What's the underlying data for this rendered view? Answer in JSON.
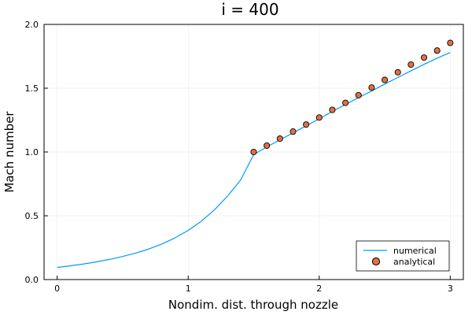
{
  "chart_data": {
    "type": "line",
    "title": "i = 400",
    "xlabel": "Nondim. dist. through nozzle",
    "ylabel": "Mach number",
    "xlim": [
      -0.1,
      3.1
    ],
    "ylim": [
      0.0,
      2.0
    ],
    "xticks": [
      0,
      1,
      2,
      3
    ],
    "xtick_labels": [
      "0",
      "1",
      "2",
      "3"
    ],
    "yticks": [
      0.0,
      0.5,
      1.0,
      1.5,
      2.0
    ],
    "ytick_labels": [
      "0.0",
      "0.5",
      "1.0",
      "1.5",
      "2.0"
    ],
    "grid": true,
    "legend_position": "bottom-right",
    "series": [
      {
        "name": "numerical",
        "kind": "line",
        "color": "#009AFA",
        "x": [
          0.0,
          0.1,
          0.2,
          0.3,
          0.4,
          0.5,
          0.6,
          0.7,
          0.8,
          0.9,
          1.0,
          1.1,
          1.2,
          1.3,
          1.4,
          1.5,
          1.6,
          1.7,
          1.8,
          1.9,
          2.0,
          2.1,
          2.2,
          2.3,
          2.4,
          2.5,
          2.6,
          2.7,
          2.8,
          2.9,
          3.0
        ],
        "y": [
          0.095,
          0.108,
          0.122,
          0.139,
          0.158,
          0.181,
          0.208,
          0.24,
          0.279,
          0.327,
          0.385,
          0.457,
          0.546,
          0.654,
          0.78,
          0.98,
          1.04,
          1.095,
          1.15,
          1.205,
          1.26,
          1.318,
          1.372,
          1.426,
          1.478,
          1.532,
          1.584,
          1.636,
          1.687,
          1.735,
          1.78
        ]
      },
      {
        "name": "analytical",
        "kind": "scatter",
        "color": "#E26F46",
        "x": [
          1.5,
          1.6,
          1.7,
          1.8,
          1.9,
          2.0,
          2.1,
          2.2,
          2.3,
          2.4,
          2.5,
          2.6,
          2.7,
          2.8,
          2.9,
          3.0
        ],
        "y": [
          1.0,
          1.05,
          1.105,
          1.16,
          1.215,
          1.27,
          1.33,
          1.385,
          1.445,
          1.505,
          1.565,
          1.625,
          1.685,
          1.74,
          1.795,
          1.855
        ]
      }
    ]
  }
}
